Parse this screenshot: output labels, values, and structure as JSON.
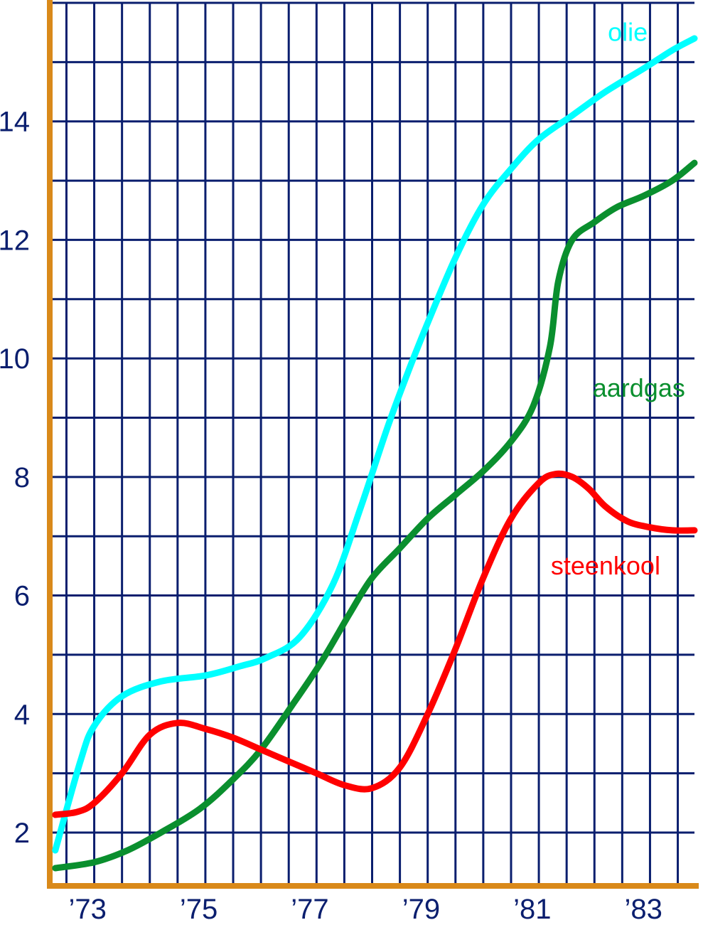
{
  "chart_data": {
    "type": "line",
    "x_tick_labels": [
      "’73",
      "’75",
      "’77",
      "’79",
      "’81",
      "’83"
    ],
    "x_tick_positions": [
      1973,
      1975,
      1977,
      1979,
      1981,
      1983
    ],
    "y_tick_labels": [
      "2",
      "4",
      "6",
      "8",
      "10",
      "12",
      "14"
    ],
    "y_tick_values": [
      2,
      4,
      6,
      8,
      10,
      12,
      14
    ],
    "xlim": [
      1972.2,
      1983.8
    ],
    "ylim": [
      1.1,
      16
    ],
    "grid": true,
    "series": [
      {
        "name": "olie",
        "color": "#00ffff",
        "x": [
          1972.3,
          1972.75,
          1973.0,
          1973.5,
          1974.2,
          1975.0,
          1975.6,
          1976.1,
          1976.7,
          1977.3,
          1977.8,
          1978.3,
          1978.7,
          1979.0,
          1979.5,
          1980.0,
          1980.5,
          1981.0,
          1981.6,
          1982.2,
          1982.9,
          1983.4,
          1983.8
        ],
        "y": [
          1.7,
          3.2,
          3.8,
          4.3,
          4.55,
          4.65,
          4.8,
          4.95,
          5.3,
          6.2,
          7.5,
          8.9,
          9.9,
          10.6,
          11.7,
          12.6,
          13.2,
          13.7,
          14.1,
          14.5,
          14.9,
          15.2,
          15.4
        ]
      },
      {
        "name": "aardgas",
        "color": "#0a8f2e",
        "x": [
          1972.3,
          1973.0,
          1973.6,
          1974.2,
          1974.9,
          1975.5,
          1976.0,
          1976.6,
          1977.1,
          1977.6,
          1978.0,
          1978.5,
          1979.0,
          1979.5,
          1980.0,
          1980.5,
          1980.9,
          1981.2,
          1981.35,
          1981.6,
          1982.0,
          1982.4,
          1982.9,
          1983.4,
          1983.8
        ],
        "y": [
          1.4,
          1.5,
          1.7,
          2.0,
          2.4,
          2.9,
          3.4,
          4.2,
          4.9,
          5.7,
          6.3,
          6.8,
          7.3,
          7.7,
          8.1,
          8.6,
          9.2,
          10.2,
          11.3,
          12.0,
          12.3,
          12.55,
          12.75,
          13.0,
          13.3
        ]
      },
      {
        "name": "steenkool",
        "color": "#ff0000",
        "x": [
          1972.3,
          1972.7,
          1973.0,
          1973.5,
          1974.0,
          1974.5,
          1975.0,
          1975.5,
          1976.0,
          1976.5,
          1977.0,
          1977.5,
          1978.0,
          1978.5,
          1979.0,
          1979.5,
          1980.0,
          1980.5,
          1981.0,
          1981.3,
          1981.6,
          1981.9,
          1982.2,
          1982.6,
          1983.0,
          1983.4,
          1983.8
        ],
        "y": [
          2.3,
          2.35,
          2.5,
          3.0,
          3.65,
          3.85,
          3.75,
          3.6,
          3.4,
          3.2,
          3.0,
          2.8,
          2.75,
          3.1,
          4.0,
          5.1,
          6.3,
          7.3,
          7.9,
          8.05,
          8.0,
          7.8,
          7.5,
          7.25,
          7.15,
          7.1,
          7.1
        ]
      }
    ],
    "annotations": [
      {
        "text": "olie",
        "series": "olie",
        "x": 1982.6,
        "y": 15.5
      },
      {
        "text": "aardgas",
        "series": "aardgas",
        "x": 1982.8,
        "y": 9.5
      },
      {
        "text": "steenkool",
        "series": "steenkool",
        "x": 1982.2,
        "y": 6.5
      }
    ],
    "colors": {
      "grid": "#0a1e6e",
      "axis": "#d9891a",
      "background": "#ffffff"
    }
  }
}
